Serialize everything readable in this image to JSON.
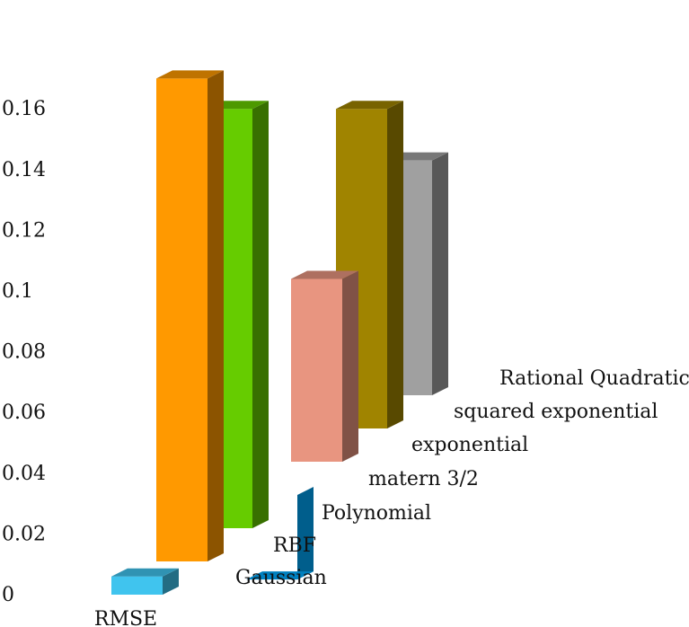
{
  "chart_data": {
    "type": "bar",
    "title": "",
    "xlabel": "RMSE",
    "ylabel": "",
    "ylim": [
      0,
      0.16
    ],
    "yticks": [
      "0",
      "0.02",
      "0.04",
      "0.06",
      "0.08",
      "0.1",
      "0.12",
      "0.14",
      "0.16"
    ],
    "grid": false,
    "legend": "none",
    "series": [
      {
        "name": "Gaussian",
        "value": 0.006,
        "color": "#40c4ee"
      },
      {
        "name": "RBF",
        "value": 0.17,
        "color": "#ff9900"
      },
      {
        "name": "Polynomial",
        "value": 0.16,
        "color": "#66cc00"
      },
      {
        "name": "matern 3/2",
        "value": 0.005,
        "color": "#00aaff"
      },
      {
        "name": "exponential",
        "value": 0.104,
        "color": "#e89580"
      },
      {
        "name": "squared exponential",
        "value": 0.16,
        "color": "#a08400"
      },
      {
        "name": "Rational Quadratic",
        "value": 0.143,
        "color": "#a0a0a0"
      }
    ]
  }
}
